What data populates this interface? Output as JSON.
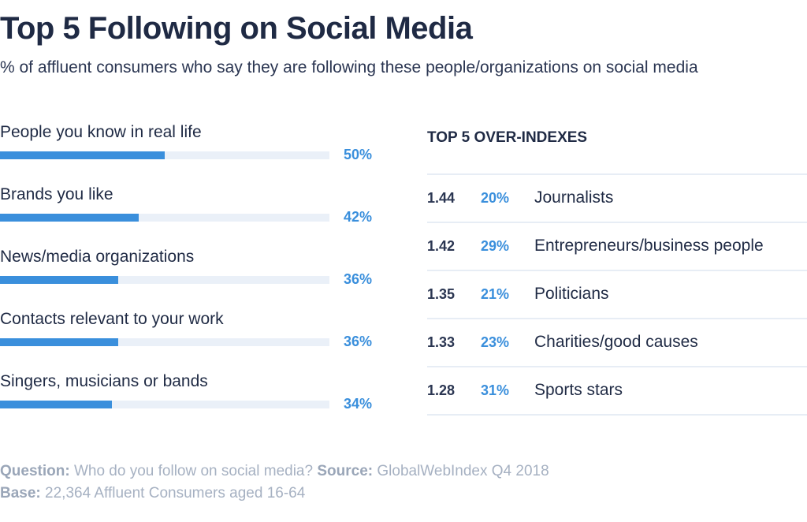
{
  "header": {
    "title": "Top 5 Following on Social Media",
    "subtitle": "% of affluent consumers who say they are following these people/organizations on social media"
  },
  "chart_data": [
    {
      "type": "bar",
      "orientation": "horizontal",
      "categories": [
        "People you know in real life",
        "Brands you like",
        "News/media organizations",
        "Contacts relevant to your work",
        "Singers, musicians or bands"
      ],
      "values": [
        50,
        42,
        36,
        36,
        34
      ],
      "value_labels": [
        "50%",
        "42%",
        "36%",
        "36%",
        "34%"
      ],
      "xlim": [
        0,
        100
      ],
      "grid": false,
      "colors": {
        "fill": "#3a8fdc",
        "track": "#eaf0f8"
      }
    },
    {
      "type": "table",
      "title": "TOP 5 OVER-INDEXES",
      "rows": [
        {
          "index": "1.44",
          "pct": "20%",
          "label": "Journalists"
        },
        {
          "index": "1.42",
          "pct": "29%",
          "label": "Entrepreneurs/business people"
        },
        {
          "index": "1.35",
          "pct": "21%",
          "label": "Politicians"
        },
        {
          "index": "1.33",
          "pct": "23%",
          "label": "Charities/good causes"
        },
        {
          "index": "1.28",
          "pct": "31%",
          "label": "Sports stars"
        }
      ]
    }
  ],
  "footer": {
    "question_label": "Question:",
    "question_text": "Who do you follow on social media?",
    "source_label": "Source:",
    "source_text": "GlobalWebIndex Q4 2018",
    "base_label": "Base:",
    "base_text": "22,364 Affluent Consumers aged 16-64"
  }
}
